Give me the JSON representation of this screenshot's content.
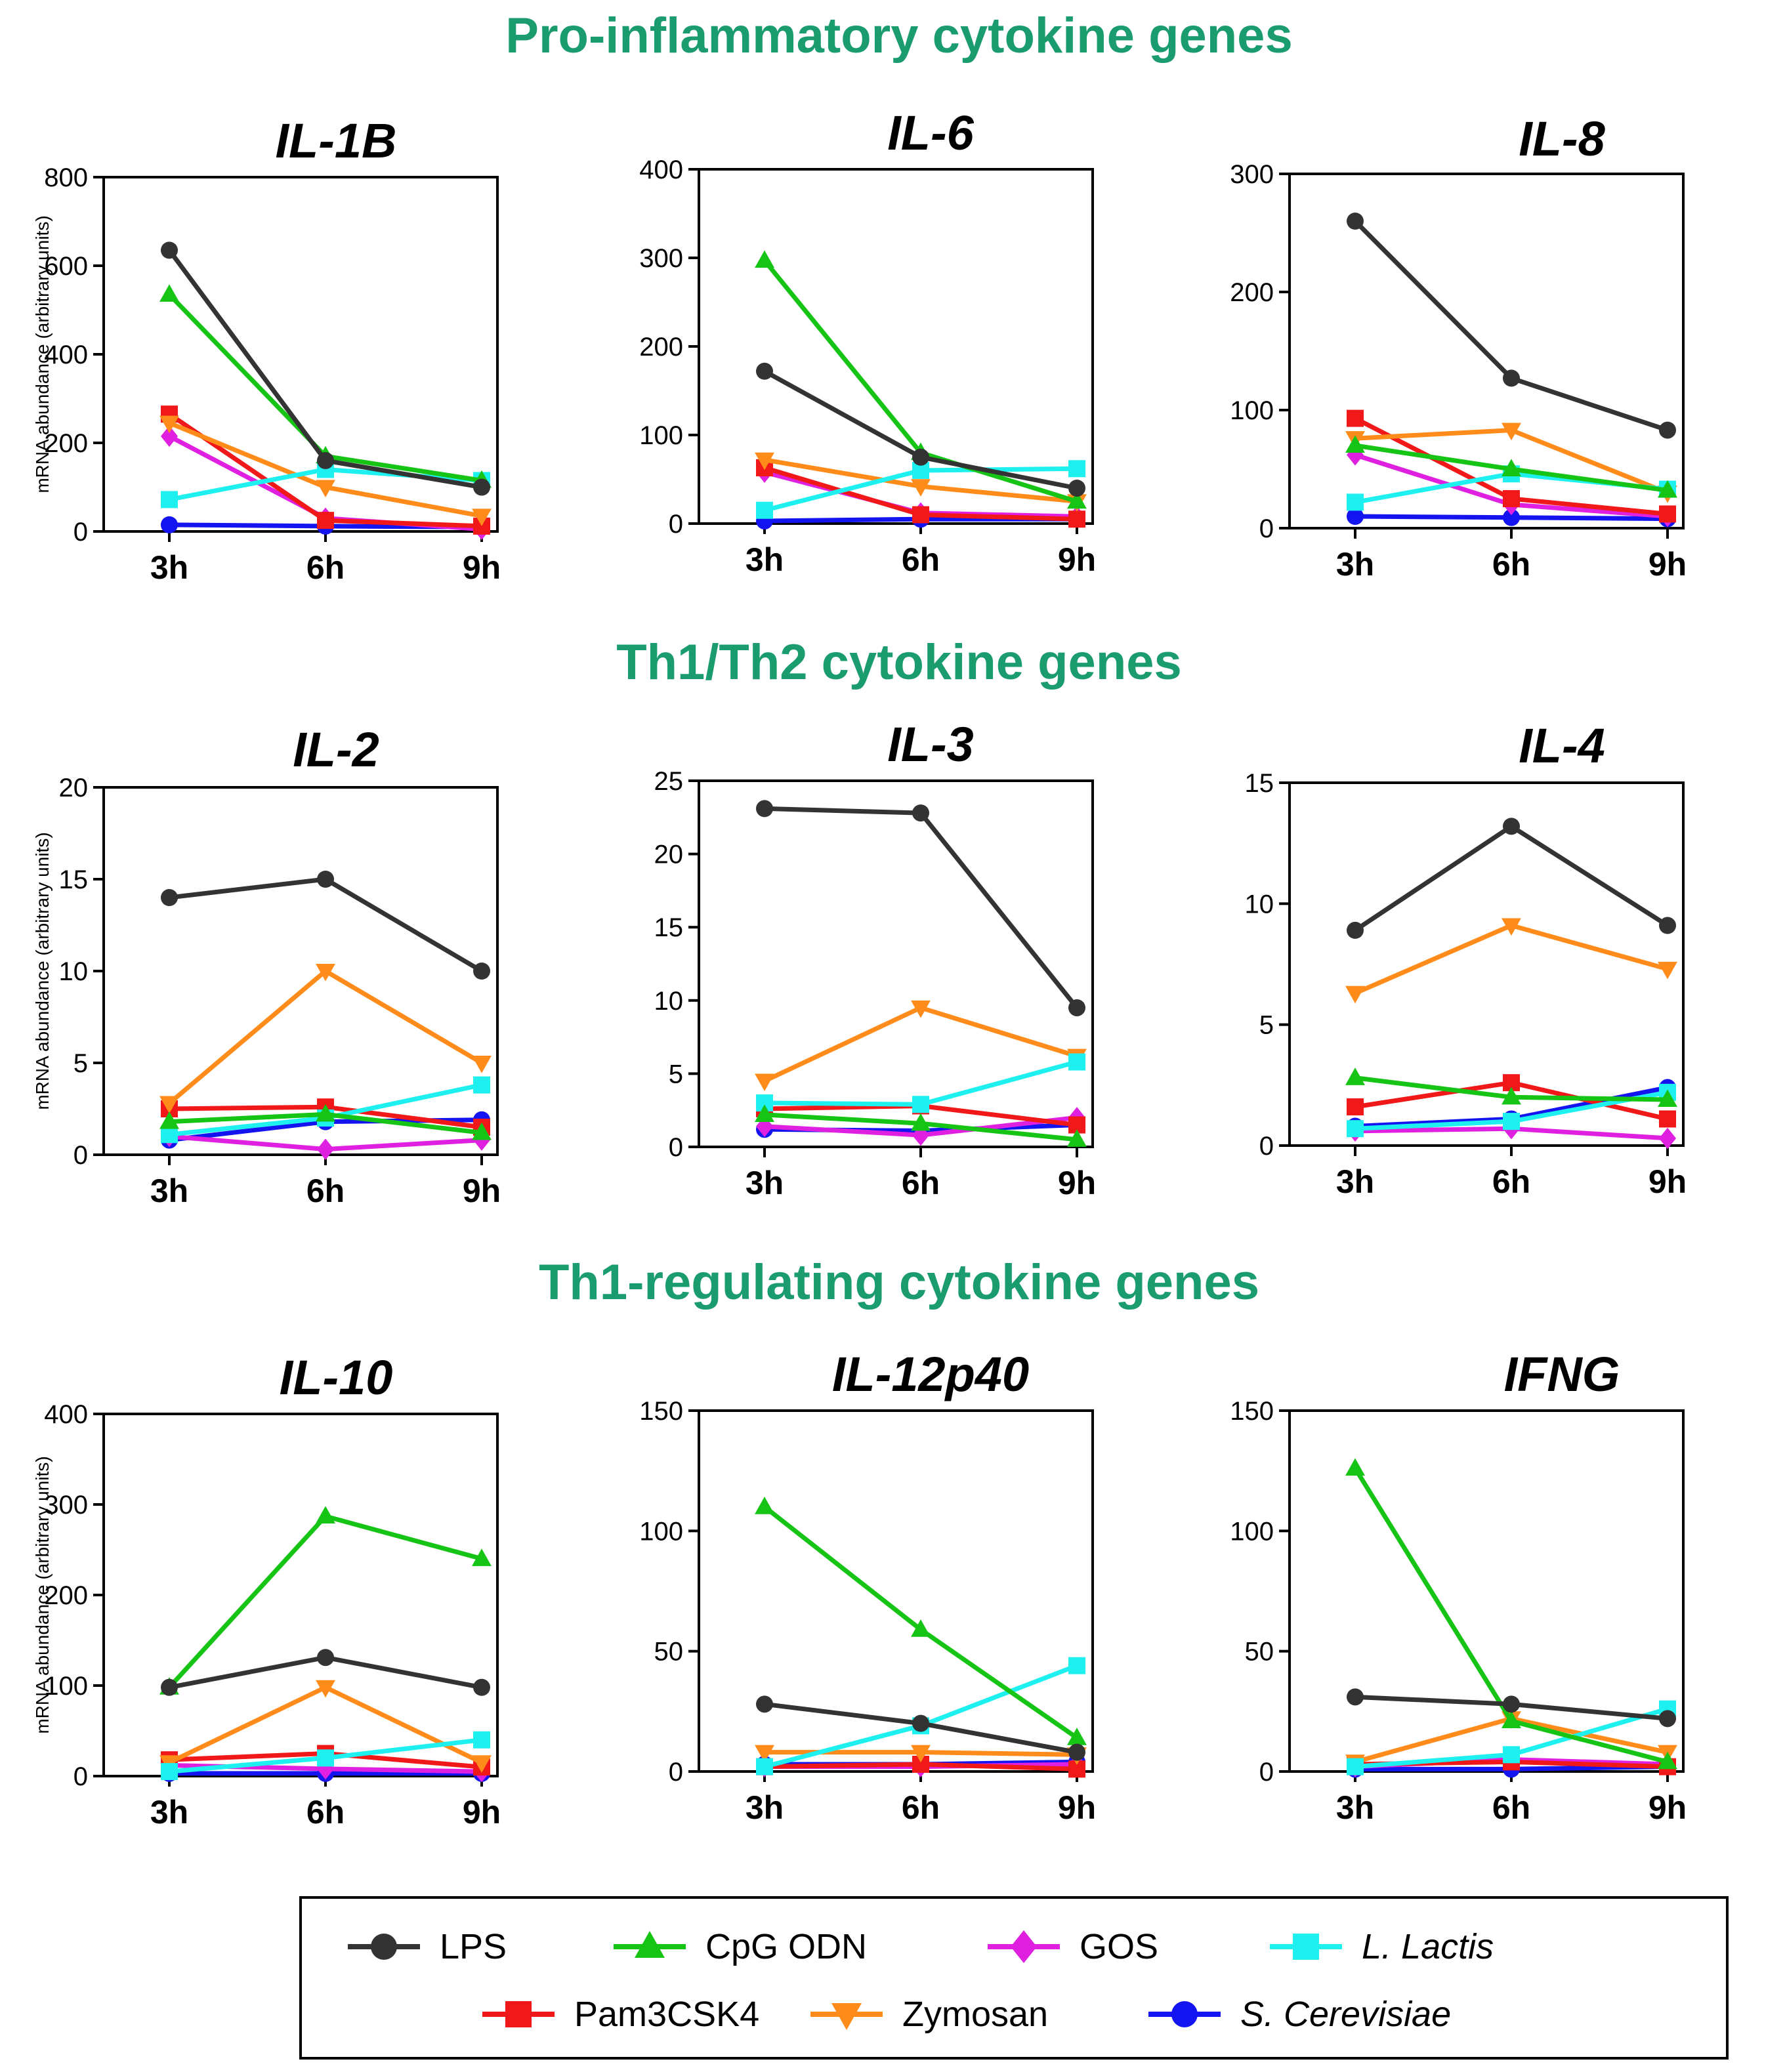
{
  "sections": [
    "Pro-inflammatory cytokine genes",
    "Th1/Th2 cytokine genes",
    "Th1-regulating cytokine genes"
  ],
  "colors": {
    "section_title": "#1a9c6e",
    "LPS": "#333333",
    "CpG ODN": "#16c416",
    "GOS": "#e020e0",
    "L. Lactis": "#1ef0f0",
    "Pam3CSK4": "#f01818",
    "Zymosan": "#ff8c1a",
    "S. Cerevisiae": "#1414f0"
  },
  "legend": {
    "entries": [
      {
        "name": "LPS",
        "marker": "circle",
        "italic": false
      },
      {
        "name": "CpG ODN",
        "marker": "triangle-up",
        "italic": false
      },
      {
        "name": "GOS",
        "marker": "diamond",
        "italic": false
      },
      {
        "name": "L. Lactis",
        "marker": "square",
        "italic": true
      },
      {
        "name": "Pam3CSK4",
        "marker": "square",
        "italic": false
      },
      {
        "name": "Zymosan",
        "marker": "triangle-down",
        "italic": false
      },
      {
        "name": "S. Cerevisiae",
        "marker": "circle",
        "italic": true
      }
    ]
  },
  "chart_data": [
    {
      "type": "line",
      "title": "IL-1B",
      "section": "Pro-inflammatory cytokine genes",
      "categories": [
        "3h",
        "6h",
        "9h"
      ],
      "ylabel": "mRNA abundance (arbitrary units)",
      "ylim": [
        0,
        800
      ],
      "yticks": [
        0,
        200,
        400,
        600,
        800
      ],
      "series": [
        {
          "name": "LPS",
          "values": [
            635,
            160,
            100
          ]
        },
        {
          "name": "CpG ODN",
          "values": [
            535,
            170,
            115
          ]
        },
        {
          "name": "Pam3CSK4",
          "values": [
            265,
            25,
            12
          ]
        },
        {
          "name": "Zymosan",
          "values": [
            245,
            100,
            35
          ]
        },
        {
          "name": "GOS",
          "values": [
            215,
            30,
            5
          ]
        },
        {
          "name": "L. Lactis",
          "values": [
            72,
            140,
            115
          ]
        },
        {
          "name": "S. Cerevisiae",
          "values": [
            15,
            12,
            10
          ]
        }
      ]
    },
    {
      "type": "line",
      "title": "IL-6",
      "section": "Pro-inflammatory cytokine genes",
      "categories": [
        "3h",
        "6h",
        "9h"
      ],
      "ylabel": "",
      "ylim": [
        0,
        400
      ],
      "yticks": [
        0,
        100,
        200,
        300,
        400
      ],
      "series": [
        {
          "name": "LPS",
          "values": [
            172,
            75,
            40
          ]
        },
        {
          "name": "CpG ODN",
          "values": [
            297,
            80,
            25
          ]
        },
        {
          "name": "Pam3CSK4",
          "values": [
            63,
            10,
            5
          ]
        },
        {
          "name": "Zymosan",
          "values": [
            72,
            42,
            25
          ]
        },
        {
          "name": "GOS",
          "values": [
            58,
            12,
            8
          ]
        },
        {
          "name": "L. Lactis",
          "values": [
            15,
            60,
            62
          ]
        },
        {
          "name": "S. Cerevisiae",
          "values": [
            3,
            5,
            5
          ]
        }
      ]
    },
    {
      "type": "line",
      "title": "IL-8",
      "section": "Pro-inflammatory cytokine genes",
      "categories": [
        "3h",
        "6h",
        "9h"
      ],
      "ylabel": "",
      "ylim": [
        0,
        300
      ],
      "yticks": [
        0,
        100,
        200,
        300
      ],
      "series": [
        {
          "name": "LPS",
          "values": [
            260,
            127,
            83
          ]
        },
        {
          "name": "CpG ODN",
          "values": [
            70,
            50,
            32
          ]
        },
        {
          "name": "Pam3CSK4",
          "values": [
            93,
            25,
            12
          ]
        },
        {
          "name": "Zymosan",
          "values": [
            76,
            83,
            30
          ]
        },
        {
          "name": "GOS",
          "values": [
            62,
            20,
            10
          ]
        },
        {
          "name": "L. Lactis",
          "values": [
            22,
            46,
            33
          ]
        },
        {
          "name": "S. Cerevisiae",
          "values": [
            10,
            9,
            8
          ]
        }
      ]
    },
    {
      "type": "line",
      "title": "IL-2",
      "section": "Th1/Th2 cytokine genes",
      "categories": [
        "3h",
        "6h",
        "9h"
      ],
      "ylabel": "mRNA abundance (arbitrary units)",
      "ylim": [
        0,
        20
      ],
      "yticks": [
        0,
        5,
        10,
        15,
        20
      ],
      "series": [
        {
          "name": "LPS",
          "values": [
            14,
            15,
            10
          ]
        },
        {
          "name": "CpG ODN",
          "values": [
            1.8,
            2.2,
            1.2
          ]
        },
        {
          "name": "Pam3CSK4",
          "values": [
            2.5,
            2.6,
            1.5
          ]
        },
        {
          "name": "Zymosan",
          "values": [
            2.8,
            10,
            5
          ]
        },
        {
          "name": "GOS",
          "values": [
            1.0,
            0.3,
            0.8
          ]
        },
        {
          "name": "L. Lactis",
          "values": [
            1.1,
            2.0,
            3.8
          ]
        },
        {
          "name": "S. Cerevisiae",
          "values": [
            0.8,
            1.8,
            1.9
          ]
        }
      ]
    },
    {
      "type": "line",
      "title": "IL-3",
      "section": "Th1/Th2 cytokine genes",
      "categories": [
        "3h",
        "6h",
        "9h"
      ],
      "ylabel": "",
      "ylim": [
        0,
        25
      ],
      "yticks": [
        0,
        5,
        10,
        15,
        20,
        25
      ],
      "series": [
        {
          "name": "LPS",
          "values": [
            23.1,
            22.8,
            9.5
          ]
        },
        {
          "name": "CpG ODN",
          "values": [
            2.2,
            1.6,
            0.5
          ]
        },
        {
          "name": "Pam3CSK4",
          "values": [
            2.6,
            2.8,
            1.5
          ]
        },
        {
          "name": "Zymosan",
          "values": [
            4.5,
            9.5,
            6.2
          ]
        },
        {
          "name": "GOS",
          "values": [
            1.4,
            0.8,
            2.0
          ]
        },
        {
          "name": "L. Lactis",
          "values": [
            3.0,
            2.9,
            5.8
          ]
        },
        {
          "name": "S. Cerevisiae",
          "values": [
            1.2,
            1.1,
            1.5
          ]
        }
      ]
    },
    {
      "type": "line",
      "title": "IL-4",
      "section": "Th1/Th2 cytokine genes",
      "categories": [
        "3h",
        "6h",
        "9h"
      ],
      "ylabel": "",
      "ylim": [
        0,
        15
      ],
      "yticks": [
        0,
        5,
        10,
        15
      ],
      "series": [
        {
          "name": "LPS",
          "values": [
            8.9,
            13.2,
            9.1
          ]
        },
        {
          "name": "CpG ODN",
          "values": [
            2.8,
            2.0,
            1.9
          ]
        },
        {
          "name": "Pam3CSK4",
          "values": [
            1.6,
            2.6,
            1.1
          ]
        },
        {
          "name": "Zymosan",
          "values": [
            6.3,
            9.1,
            7.3
          ]
        },
        {
          "name": "GOS",
          "values": [
            0.6,
            0.7,
            0.3
          ]
        },
        {
          "name": "L. Lactis",
          "values": [
            0.7,
            1.0,
            2.2
          ]
        },
        {
          "name": "S. Cerevisiae",
          "values": [
            0.8,
            1.1,
            2.4
          ]
        }
      ]
    },
    {
      "type": "line",
      "title": "IL-10",
      "section": "Th1-regulating cytokine genes",
      "categories": [
        "3h",
        "6h",
        "9h"
      ],
      "ylabel": "mRNA abundance (arbitrary units)",
      "ylim": [
        0,
        400
      ],
      "yticks": [
        0,
        100,
        200,
        300,
        400
      ],
      "series": [
        {
          "name": "LPS",
          "values": [
            98,
            131,
            98
          ]
        },
        {
          "name": "CpG ODN",
          "values": [
            98,
            287,
            240
          ]
        },
        {
          "name": "Pam3CSK4",
          "values": [
            18,
            25,
            10
          ]
        },
        {
          "name": "Zymosan",
          "values": [
            15,
            98,
            15
          ]
        },
        {
          "name": "GOS",
          "values": [
            12,
            8,
            5
          ]
        },
        {
          "name": "L. Lactis",
          "values": [
            5,
            20,
            40
          ]
        },
        {
          "name": "S. Cerevisiae",
          "values": [
            3,
            3,
            3
          ]
        }
      ]
    },
    {
      "type": "line",
      "title": "IL-12p40",
      "section": "Th1-regulating cytokine genes",
      "categories": [
        "3h",
        "6h",
        "9h"
      ],
      "ylabel": "",
      "ylim": [
        0,
        150
      ],
      "yticks": [
        0,
        50,
        100,
        150
      ],
      "series": [
        {
          "name": "LPS",
          "values": [
            28,
            20,
            8
          ]
        },
        {
          "name": "CpG ODN",
          "values": [
            110,
            59,
            14
          ]
        },
        {
          "name": "Pam3CSK4",
          "values": [
            2,
            3,
            1
          ]
        },
        {
          "name": "Zymosan",
          "values": [
            8,
            8,
            7
          ]
        },
        {
          "name": "GOS",
          "values": [
            2,
            2,
            3
          ]
        },
        {
          "name": "L. Lactis",
          "values": [
            2,
            19,
            44
          ]
        },
        {
          "name": "S. Cerevisiae",
          "values": [
            3,
            3,
            4
          ]
        }
      ]
    },
    {
      "type": "line",
      "title": "IFNG",
      "section": "Th1-regulating cytokine genes",
      "categories": [
        "3h",
        "6h",
        "9h"
      ],
      "ylabel": "",
      "ylim": [
        0,
        150
      ],
      "yticks": [
        0,
        50,
        100,
        150
      ],
      "series": [
        {
          "name": "LPS",
          "values": [
            31,
            28,
            22
          ]
        },
        {
          "name": "CpG ODN",
          "values": [
            126,
            21,
            4
          ]
        },
        {
          "name": "Pam3CSK4",
          "values": [
            3,
            4,
            2
          ]
        },
        {
          "name": "Zymosan",
          "values": [
            4,
            22,
            8
          ]
        },
        {
          "name": "GOS",
          "values": [
            2,
            5,
            3
          ]
        },
        {
          "name": "L. Lactis",
          "values": [
            2,
            7,
            26
          ]
        },
        {
          "name": "S. Cerevisiae",
          "values": [
            1,
            1,
            2
          ]
        }
      ]
    }
  ]
}
